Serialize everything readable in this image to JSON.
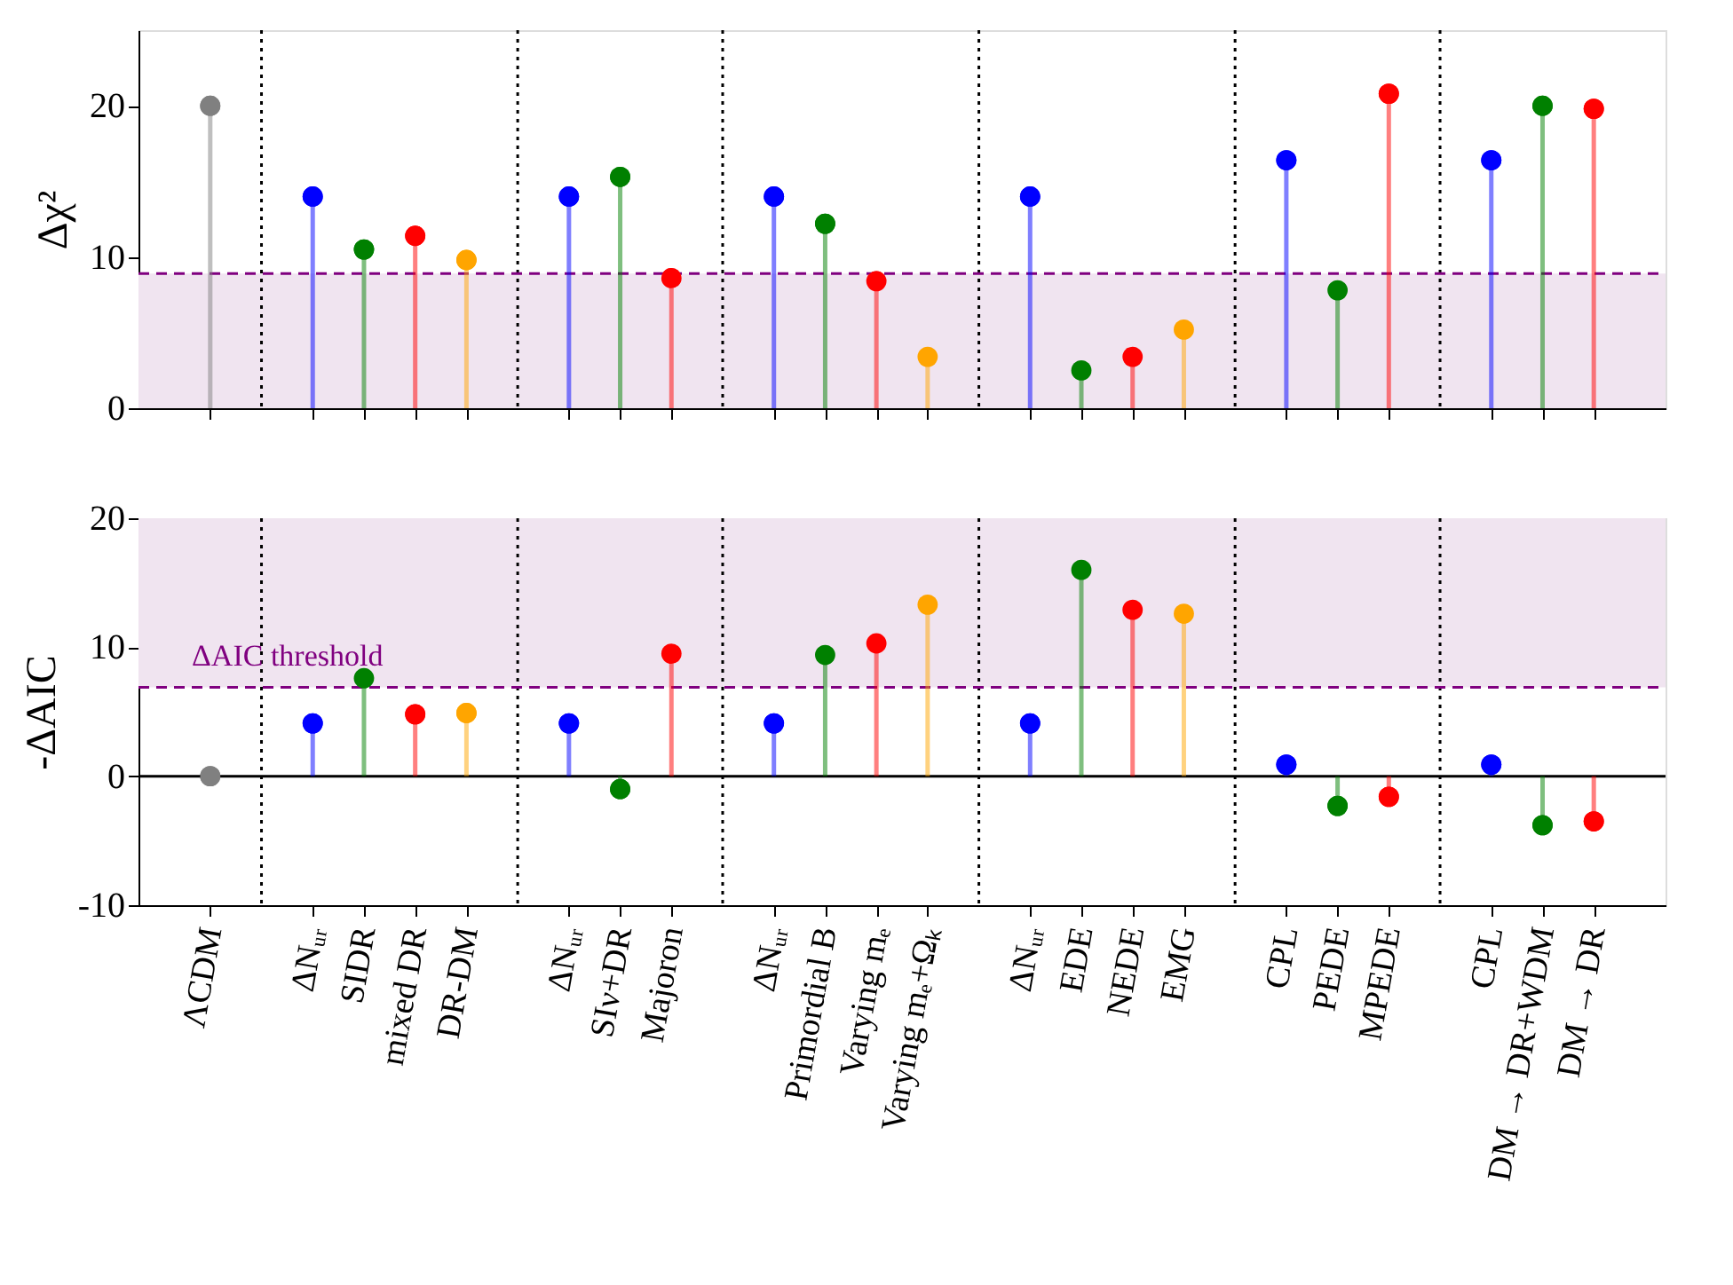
{
  "chart_data": [
    {
      "type": "lollipop",
      "ylabel": "Δχ²",
      "categories": [
        "ΛCDM",
        null,
        "ΔNᵤᵣ",
        "SIDR",
        "mixed DR",
        "DR-DM",
        null,
        "ΔNᵤᵣ",
        "SIν+DR",
        "Majoron",
        null,
        "ΔNᵤᵣ",
        "Primordial B",
        "Varying mₑ",
        "Varying mₑ+Ωₖ",
        null,
        "ΔNᵤᵣ",
        "EDE",
        "NEDE",
        "EMG",
        null,
        "CPL",
        "PEDE",
        "MPEDE",
        null,
        "CPL",
        "DM → DR+WDM",
        "DM → DR"
      ],
      "values": [
        20.0,
        null,
        14.0,
        10.5,
        11.4,
        9.8,
        null,
        14.0,
        15.3,
        8.6,
        null,
        14.0,
        12.2,
        8.4,
        3.4,
        null,
        14.0,
        2.5,
        3.4,
        5.2,
        null,
        16.4,
        7.8,
        20.8,
        null,
        16.4,
        20.0,
        19.8
      ],
      "colors": [
        "#808080",
        null,
        "#0000ff",
        "#008000",
        "#ff0000",
        "#ffa500",
        null,
        "#0000ff",
        "#008000",
        "#ff0000",
        null,
        "#0000ff",
        "#008000",
        "#ff0000",
        "#ffa500",
        null,
        "#0000ff",
        "#008000",
        "#ff0000",
        "#ffa500",
        null,
        "#0000ff",
        "#008000",
        "#ff0000",
        null,
        "#0000ff",
        "#008000",
        "#ff0000"
      ],
      "ylim": [
        0,
        25
      ],
      "yticks": [
        0,
        10,
        20
      ],
      "tick_labels": "y",
      "grid": "x",
      "marker": "circle",
      "bands": [
        {
          "axis": "y",
          "from": 0,
          "to": 8.9,
          "color": "#f0e4f0"
        }
      ],
      "ref_lines": [
        {
          "axis": "y",
          "value": 8.9,
          "color": "#800080",
          "line_style": "dashed"
        }
      ]
    },
    {
      "type": "lollipop",
      "ylabel": "-ΔAIC",
      "categories": [
        "ΛCDM",
        null,
        "ΔNᵤᵣ",
        "SIDR",
        "mixed DR",
        "DR-DM",
        null,
        "ΔNᵤᵣ",
        "SIν+DR",
        "Majoron",
        null,
        "ΔNᵤᵣ",
        "Primordial B",
        "Varying mₑ",
        "Varying mₑ+Ωₖ",
        null,
        "ΔNᵤᵣ",
        "EDE",
        "NEDE",
        "EMG",
        null,
        "CPL",
        "PEDE",
        "MPEDE",
        null,
        "CPL",
        "DM → DR+WDM",
        "DM → DR"
      ],
      "values": [
        0.0,
        null,
        4.1,
        7.6,
        4.8,
        4.9,
        null,
        4.1,
        -1.0,
        9.5,
        null,
        4.1,
        9.4,
        10.3,
        13.3,
        null,
        4.1,
        16.0,
        12.9,
        12.6,
        null,
        0.9,
        -2.3,
        -1.6,
        null,
        0.9,
        -3.8,
        -3.5
      ],
      "colors": [
        "#808080",
        null,
        "#0000ff",
        "#008000",
        "#ff0000",
        "#ffa500",
        null,
        "#0000ff",
        "#008000",
        "#ff0000",
        null,
        "#0000ff",
        "#008000",
        "#ff0000",
        "#ffa500",
        null,
        "#0000ff",
        "#008000",
        "#ff0000",
        "#ffa500",
        null,
        "#0000ff",
        "#008000",
        "#ff0000",
        null,
        "#0000ff",
        "#008000",
        "#ff0000"
      ],
      "ylim": [
        -10,
        20
      ],
      "yticks": [
        -10,
        0,
        10,
        20
      ],
      "grid": "x",
      "marker": "circle",
      "bands": [
        {
          "axis": "y",
          "from": 6.9,
          "to": 20,
          "color": "#f0e4f0"
        }
      ],
      "ref_lines": [
        {
          "axis": "y",
          "value": 6.9,
          "color": "#800080",
          "line_style": "dashed",
          "label": "ΔAIC threshold"
        },
        {
          "axis": "y",
          "value": 0,
          "color": "#000000",
          "line_style": "solid"
        }
      ]
    }
  ]
}
